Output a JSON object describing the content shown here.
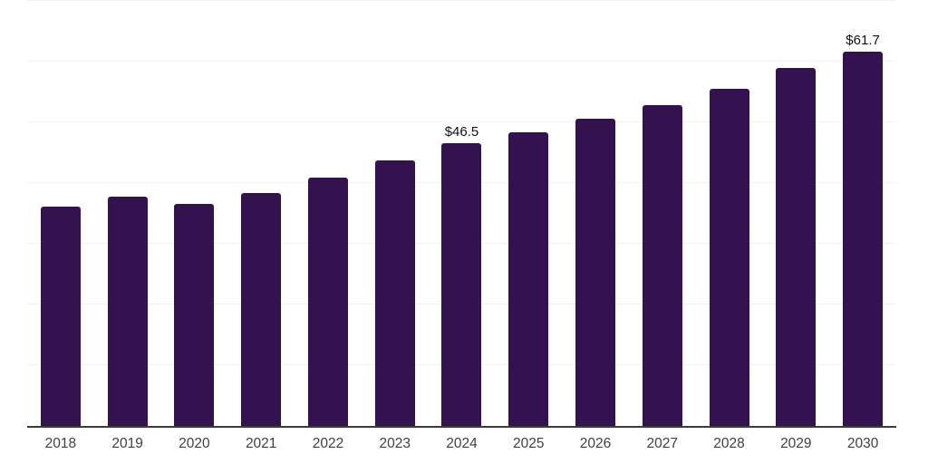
{
  "chart": {
    "background": "#ffffff",
    "bar_color": "#34114F",
    "gridline_color": "#f2f2f5",
    "axis_color": "#3a3a3a",
    "xlabel_color": "#404040",
    "data_label_color": "#111111"
  },
  "chart_data": {
    "type": "bar",
    "categories": [
      "2018",
      "2019",
      "2020",
      "2021",
      "2022",
      "2023",
      "2024",
      "2025",
      "2026",
      "2027",
      "2028",
      "2029",
      "2030"
    ],
    "values": [
      36.2,
      37.8,
      36.5,
      38.3,
      40.9,
      43.7,
      46.5,
      48.4,
      50.6,
      52.8,
      55.6,
      58.9,
      61.7
    ],
    "data_labels": [
      "",
      "",
      "",
      "",
      "",
      "",
      "$46.5",
      "",
      "",
      "",
      "",
      "",
      "$61.7"
    ],
    "title": "",
    "xlabel": "",
    "ylabel": "",
    "ylim": [
      0,
      70
    ],
    "grid_step": 10,
    "grid": true,
    "legend": false,
    "y_axis_labels_visible": false
  }
}
